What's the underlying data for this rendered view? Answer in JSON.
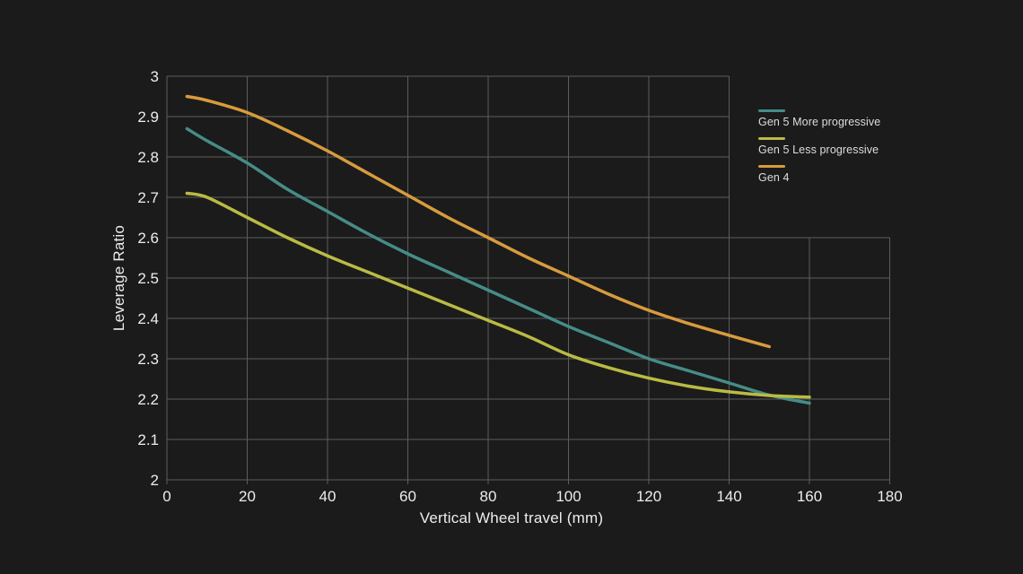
{
  "page": {
    "background": "#1b1b1b",
    "text_color": "#ededeb",
    "grid_color": "#5d5d5d"
  },
  "chart_data": {
    "type": "line",
    "title": "",
    "xlabel": "Vertical Wheel travel (mm)",
    "ylabel": "Leverage Ratio",
    "xlim": [
      0,
      180
    ],
    "ylim": [
      2,
      3
    ],
    "x_ticks": [
      0,
      20,
      40,
      60,
      80,
      100,
      120,
      140,
      160,
      180
    ],
    "y_ticks": [
      2,
      2.1,
      2.2,
      2.3,
      2.4,
      2.5,
      2.6,
      2.7,
      2.8,
      2.9,
      3
    ],
    "grid": "on",
    "legend_position": "top-right",
    "series": [
      {
        "name": "Gen 5 More progressive",
        "color": "#468c87",
        "x": [
          5,
          10,
          20,
          30,
          40,
          50,
          60,
          70,
          80,
          90,
          100,
          110,
          120,
          130,
          140,
          150,
          160
        ],
        "y": [
          2.87,
          2.84,
          2.785,
          2.72,
          2.665,
          2.61,
          2.56,
          2.515,
          2.47,
          2.425,
          2.38,
          2.34,
          2.3,
          2.27,
          2.24,
          2.21,
          2.19
        ]
      },
      {
        "name": "Gen 5 Less progressive",
        "color": "#b9bb44",
        "x": [
          5,
          10,
          20,
          30,
          40,
          50,
          60,
          70,
          80,
          90,
          100,
          110,
          120,
          130,
          140,
          150,
          160
        ],
        "y": [
          2.71,
          2.7,
          2.65,
          2.6,
          2.555,
          2.515,
          2.475,
          2.435,
          2.395,
          2.355,
          2.31,
          2.278,
          2.252,
          2.232,
          2.218,
          2.209,
          2.205
        ]
      },
      {
        "name": "Gen 4",
        "color": "#d89b3d",
        "x": [
          5,
          10,
          20,
          30,
          40,
          50,
          60,
          70,
          80,
          90,
          100,
          110,
          120,
          130,
          140,
          150
        ],
        "y": [
          2.95,
          2.94,
          2.91,
          2.865,
          2.815,
          2.76,
          2.705,
          2.65,
          2.6,
          2.55,
          2.505,
          2.46,
          2.42,
          2.387,
          2.358,
          2.33
        ]
      }
    ]
  }
}
